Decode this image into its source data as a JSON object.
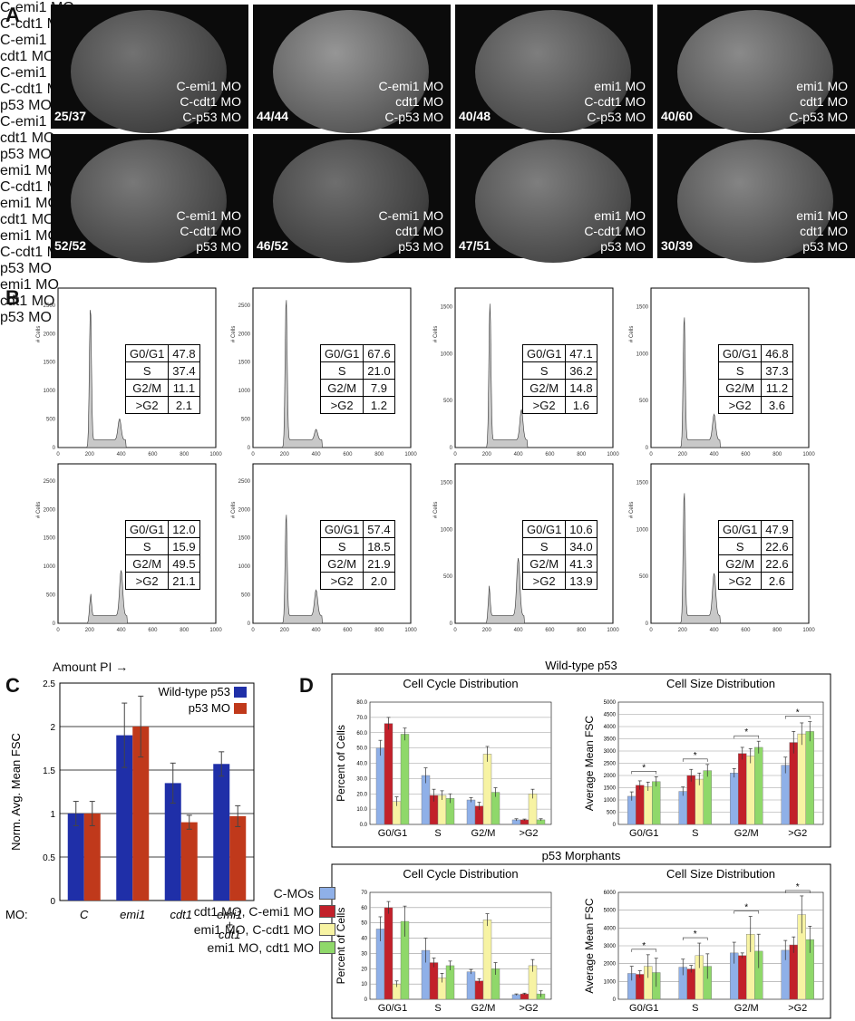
{
  "panel_labels": {
    "a": "A",
    "b": "B",
    "c": "C",
    "d": "D"
  },
  "panel_a": {
    "images": [
      {
        "count": "25/37",
        "lines": [
          "C-emi1 MO",
          "C-cdt1 MO",
          "C-p53 MO"
        ]
      },
      {
        "count": "44/44",
        "lines": [
          "C-emi1 MO",
          "cdt1 MO",
          "C-p53 MO"
        ]
      },
      {
        "count": "40/48",
        "lines": [
          "emi1 MO",
          "C-cdt1 MO",
          "C-p53 MO"
        ]
      },
      {
        "count": "40/60",
        "lines": [
          "emi1 MO",
          "cdt1 MO",
          "C-p53 MO"
        ]
      },
      {
        "count": "52/52",
        "lines": [
          "C-emi1 MO",
          "C-cdt1 MO",
          "p53 MO"
        ]
      },
      {
        "count": "46/52",
        "lines": [
          "C-emi1 MO",
          "cdt1 MO",
          "p53 MO"
        ]
      },
      {
        "count": "47/51",
        "lines": [
          "emi1 MO",
          "C-cdt1 MO",
          "p53 MO"
        ]
      },
      {
        "count": "30/39",
        "lines": [
          "emi1 MO",
          "cdt1 MO",
          "p53 MO"
        ]
      }
    ]
  },
  "panel_b": {
    "x_axis_label": "Amount PI →",
    "y_axis_label": "# Cells",
    "x_ticks": [
      "0",
      "200",
      "400",
      "600",
      "800",
      "1000"
    ],
    "table_rows": [
      "G0/G1",
      "S",
      "G2/M",
      ">G2"
    ],
    "hists": [
      {
        "lines": [
          "C-emi1 MO",
          "C-cdt1 MO"
        ],
        "values": [
          "47.8",
          "37.4",
          "11.1",
          "2.1"
        ],
        "yticks": [
          "0",
          "500",
          "1000",
          "1500",
          "2000",
          "2500"
        ],
        "peaks": [
          [
            205,
            0.92
          ],
          [
            390,
            0.14
          ]
        ]
      },
      {
        "lines": [
          "C-emi1 MO",
          "cdt1 MO"
        ],
        "values": [
          "67.6",
          "21.0",
          "7.9",
          "1.2"
        ],
        "yticks": [
          "0",
          "500",
          "1000",
          "1500",
          "2000",
          "2500"
        ],
        "peaks": [
          [
            210,
            0.97
          ],
          [
            400,
            0.07
          ]
        ]
      },
      {
        "lines": [
          "C-emi1 MO",
          "C-cdt1 MO",
          "p53 MO"
        ],
        "values": [
          "47.1",
          "36.2",
          "14.8",
          "1.6"
        ],
        "yticks": [
          "0",
          "500",
          "1000",
          "1500"
        ],
        "peaks": [
          [
            220,
            0.95
          ],
          [
            420,
            0.2
          ]
        ]
      },
      {
        "lines": [
          "C-emi1 MO",
          "cdt1 MO",
          "p53 MO"
        ],
        "values": [
          "46.8",
          "37.3",
          "11.2",
          "3.6"
        ],
        "yticks": [
          "0",
          "500",
          "1000",
          "1500"
        ],
        "peaks": [
          [
            210,
            0.85
          ],
          [
            400,
            0.17
          ]
        ]
      },
      {
        "lines": [
          "emi1 MO",
          "C-cdt1 MO"
        ],
        "values": [
          "12.0",
          "15.9",
          "49.5",
          "21.1"
        ],
        "yticks": [
          "0",
          "500",
          "1000",
          "1500",
          "2000",
          "2500"
        ],
        "peaks": [
          [
            205,
            0.16
          ],
          [
            400,
            0.3
          ]
        ]
      },
      {
        "lines": [
          "emi1 MO",
          "cdt1 MO"
        ],
        "values": [
          "57.4",
          "18.5",
          "21.9",
          "2.0"
        ],
        "yticks": [
          "0",
          "500",
          "1000",
          "1500",
          "2000",
          "2500"
        ],
        "peaks": [
          [
            210,
            0.7
          ],
          [
            400,
            0.17
          ]
        ]
      },
      {
        "lines": [
          "emi1 MO",
          "C-cdt1 MO",
          "p53 MO"
        ],
        "values": [
          "10.6",
          "34.0",
          "41.3",
          "13.9"
        ],
        "yticks": [
          "0",
          "500",
          "1000",
          "1500"
        ],
        "peaks": [
          [
            215,
            0.2
          ],
          [
            400,
            0.38
          ]
        ]
      },
      {
        "lines": [
          "emi1 MO",
          "cdt1 MO",
          "p53 MO"
        ],
        "values": [
          "47.9",
          "22.6",
          "22.6",
          "2.6"
        ],
        "yticks": [
          "0",
          "500",
          "1000",
          "1500"
        ],
        "peaks": [
          [
            210,
            0.85
          ],
          [
            400,
            0.28
          ]
        ]
      }
    ]
  },
  "chart_data": [
    {
      "type": "bar",
      "panel": "C",
      "categories": [
        "C",
        "emi1",
        "cdt1",
        "emi1\n+\ncdt1"
      ],
      "category_prefix": "MO:",
      "ylabel": "Norm. Avg. Mean FSC",
      "ylim": [
        0,
        2.5
      ],
      "yticks": [
        "0",
        "0.5",
        "1",
        "1.5",
        "2",
        "2.5"
      ],
      "series": [
        {
          "name": "Wild-type p53",
          "color": "#1f2fa8",
          "values": [
            1.0,
            1.9,
            1.35,
            1.57
          ],
          "errors": [
            0.14,
            0.37,
            0.23,
            0.14
          ]
        },
        {
          "name": "p53 MO",
          "color": "#c0391b",
          "values": [
            1.0,
            2.0,
            0.9,
            0.97
          ],
          "errors": [
            0.14,
            0.35,
            0.08,
            0.12
          ]
        }
      ]
    },
    {
      "type": "bar",
      "panel": "D",
      "group": "Wild-type p53",
      "title": "Cell Cycle Distribution",
      "ylabel": "Percent of Cells",
      "ylim": [
        0,
        80
      ],
      "yticks": [
        "0.0",
        "10.0",
        "20.0",
        "30.0",
        "40.0",
        "50.0",
        "60.0",
        "70.0",
        "80.0"
      ],
      "categories": [
        "G0/G1",
        "S",
        "G2/M",
        ">G2"
      ],
      "series": [
        {
          "name": "C-MOs",
          "values": [
            50,
            32,
            16,
            3
          ],
          "errors": [
            5,
            5,
            1.5,
            0.7
          ]
        },
        {
          "name": "cdt1 MO, C-emi1 MO",
          "values": [
            66,
            19,
            12,
            3
          ],
          "errors": [
            4,
            4,
            2.5,
            0.5
          ]
        },
        {
          "name": "emi1 MO, C-cdt1 MO",
          "values": [
            15,
            19,
            46,
            20
          ],
          "errors": [
            3,
            3,
            5,
            3
          ]
        },
        {
          "name": "emi1 MO, cdt1 MO",
          "values": [
            59,
            17,
            21,
            3
          ],
          "errors": [
            4,
            3,
            3,
            0.7
          ]
        }
      ]
    },
    {
      "type": "bar",
      "panel": "D",
      "group": "Wild-type p53",
      "title": "Cell Size Distribution",
      "ylabel": "Average Mean FSC",
      "ylim": [
        0,
        5000
      ],
      "yticks": [
        "0",
        "500",
        "1000",
        "1500",
        "2000",
        "2500",
        "3000",
        "3500",
        "4000",
        "4500",
        "5000"
      ],
      "categories": [
        "G0/G1",
        "S",
        "G2/M",
        ">G2"
      ],
      "series": [
        {
          "name": "C-MOs",
          "values": [
            1150,
            1350,
            2100,
            2420
          ],
          "errors": [
            180,
            180,
            180,
            330
          ]
        },
        {
          "name": "cdt1 MO, C-emi1 MO",
          "values": [
            1600,
            2000,
            2900,
            3350
          ],
          "errors": [
            180,
            250,
            250,
            450
          ]
        },
        {
          "name": "emi1 MO, C-cdt1 MO",
          "values": [
            1550,
            1850,
            2800,
            3700
          ],
          "errors": [
            180,
            250,
            300,
            450
          ]
        },
        {
          "name": "emi1 MO, cdt1 MO",
          "values": [
            1750,
            2200,
            3150,
            3800
          ],
          "errors": [
            200,
            250,
            250,
            400
          ]
        }
      ]
    },
    {
      "type": "bar",
      "panel": "D",
      "group": "p53 Morphants",
      "title": "Cell Cycle Distribution",
      "ylabel": "Percent of Cells",
      "ylim": [
        0,
        70
      ],
      "yticks": [
        "0",
        "10",
        "20",
        "30",
        "40",
        "50",
        "60",
        "70"
      ],
      "categories": [
        "G0/G1",
        "S",
        "G2/M",
        ">G2"
      ],
      "series": [
        {
          "name": "C-MOs",
          "values": [
            46,
            32,
            18,
            3
          ],
          "errors": [
            8,
            8,
            1.5,
            0.5
          ]
        },
        {
          "name": "cdt1 MO, C-emi1 MO",
          "values": [
            60,
            24,
            12,
            3.5
          ],
          "errors": [
            4,
            3,
            1.5,
            0.5
          ]
        },
        {
          "name": "emi1 MO, C-cdt1 MO",
          "values": [
            10,
            14,
            52,
            22
          ],
          "errors": [
            2,
            3,
            4,
            4
          ]
        },
        {
          "name": "emi1 MO, cdt1 MO",
          "values": [
            51,
            22,
            20,
            3.5
          ],
          "errors": [
            10,
            3,
            4,
            2
          ]
        }
      ]
    },
    {
      "type": "bar",
      "panel": "D",
      "group": "p53 Morphants",
      "title": "Cell Size Distribution",
      "ylabel": "Average Mean FSC",
      "ylim": [
        0,
        6000
      ],
      "yticks": [
        "0",
        "1000",
        "2000",
        "3000",
        "4000",
        "5000",
        "6000"
      ],
      "categories": [
        "G0/G1",
        "S",
        "G2/M",
        ">G2"
      ],
      "series": [
        {
          "name": "C-MOs",
          "values": [
            1450,
            1800,
            2600,
            2750
          ],
          "errors": [
            400,
            450,
            600,
            550
          ]
        },
        {
          "name": "cdt1 MO, C-emi1 MO",
          "values": [
            1400,
            1700,
            2450,
            3050
          ],
          "errors": [
            200,
            200,
            150,
            450
          ]
        },
        {
          "name": "emi1 MO, C-cdt1 MO",
          "values": [
            1850,
            2450,
            3650,
            4750
          ],
          "errors": [
            650,
            700,
            1000,
            1050
          ]
        },
        {
          "name": "emi1 MO, cdt1 MO",
          "values": [
            1500,
            1850,
            2700,
            3350
          ],
          "errors": [
            800,
            700,
            950,
            750
          ]
        }
      ]
    }
  ],
  "panel_d": {
    "legend": [
      {
        "label": "C-MOs",
        "color": "#8fb0e8"
      },
      {
        "label": "cdt1 MO, C-emi1 MO",
        "color": "#c2202a"
      },
      {
        "label": "emi1 MO, C-cdt1 MO",
        "color": "#f7f3a3"
      },
      {
        "label": "emi1 MO, cdt1 MO",
        "color": "#8fd86a"
      }
    ],
    "group_titles": [
      "Wild-type p53",
      "p53 Morphants"
    ],
    "star": "*"
  }
}
